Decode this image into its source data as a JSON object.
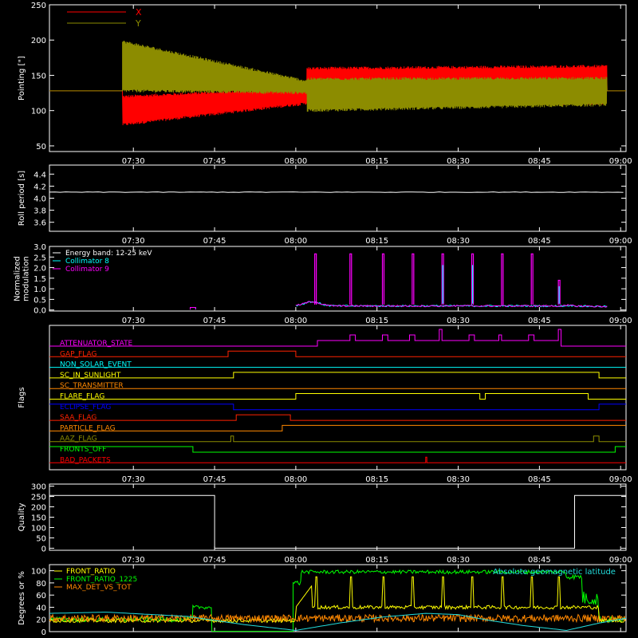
{
  "time_axis": {
    "tick_labels": [
      "07:30",
      "07:45",
      "08:00",
      "08:15",
      "08:30",
      "08:45",
      "09:00"
    ],
    "tick_minutes": [
      0,
      15,
      30,
      45,
      60,
      75,
      90
    ],
    "range_minutes": [
      -15.5,
      91
    ]
  },
  "colors": {
    "axes": "#ffffff",
    "red": "#ff0000",
    "olive": "#8c8c00",
    "cyan": "#00ffff",
    "magenta": "#ff00ff",
    "white": "#ffffff",
    "green": "#00ff00",
    "yellow": "#ffff00",
    "orange": "#ff8800",
    "blue": "#0000ff",
    "aqua": "#22dddd"
  },
  "chart_data": [
    {
      "id": "pointing",
      "type": "line",
      "ylabel": "Pointing [\"]",
      "ylim": [
        42,
        250
      ],
      "yticks": [
        50,
        100,
        150,
        200,
        250
      ],
      "legend": [
        {
          "name": "X",
          "color": "#ff0000"
        },
        {
          "name": "Y",
          "color": "#8c8c00"
        }
      ],
      "series": [
        {
          "name": "X",
          "color": "#ff0000",
          "baseline": 128,
          "envelope": {
            "t": [
              -2,
              32,
              32,
              87.5
            ],
            "low": [
              80,
              110,
              110,
              110
            ],
            "high": [
              120,
              132,
              160,
              163
            ]
          }
        },
        {
          "name": "Y",
          "color": "#8c8c00",
          "baseline": 128,
          "envelope": {
            "t": [
              -2,
              32,
              32,
              87.5
            ],
            "low": [
              128,
              125,
              100,
              108
            ],
            "high": [
              198,
              142,
              145,
              146
            ]
          }
        }
      ]
    },
    {
      "id": "roll",
      "type": "line",
      "ylabel": "Roll period [s]",
      "ylim": [
        3.45,
        4.55
      ],
      "yticks": [
        3.6,
        3.8,
        4.0,
        4.2,
        4.4
      ],
      "yticklabels": [
        "3.6",
        "3.8",
        "4.0",
        "4.2",
        "4.4"
      ],
      "series": [
        {
          "name": "",
          "color": "#ffffff",
          "value": 4.1,
          "range": [
            -15.5,
            91
          ]
        }
      ]
    },
    {
      "id": "modulation",
      "type": "line",
      "ylabel": [
        "Normalized",
        "modulation"
      ],
      "ylim": [
        -0.05,
        3.0
      ],
      "yticks": [
        0.0,
        0.5,
        1.0,
        1.5,
        2.0,
        2.5,
        3.0
      ],
      "yticklabels": [
        "0.0",
        "0.5",
        "1.0",
        "1.5",
        "2.0",
        "2.5",
        "3.0"
      ],
      "legend": [
        {
          "name": "Energy band: 12-25 keV",
          "color": "#ffffff"
        },
        {
          "name": "Collimator 8",
          "color": "#00ffff"
        },
        {
          "name": "Collimator 9",
          "color": "#ff00ff"
        }
      ],
      "active_range": [
        30,
        87.5
      ],
      "spikes": [
        {
          "t": 33.5,
          "value": 2.65
        },
        {
          "t": 40,
          "value": 2.65
        },
        {
          "t": 46,
          "value": 2.65
        },
        {
          "t": 51.5,
          "value": 2.65
        },
        {
          "t": 57,
          "value": 2.65
        },
        {
          "t": 62.5,
          "value": 2.65
        },
        {
          "t": 68,
          "value": 2.65
        },
        {
          "t": 73.5,
          "value": 2.65
        },
        {
          "t": 78.5,
          "value": 1.4
        }
      ]
    },
    {
      "id": "flags",
      "type": "line",
      "ylabel": "Flags",
      "rows": [
        {
          "name": "ATTENUATOR_STATE",
          "color": "#ff00ff",
          "steps": [
            [
              -15.5,
              0
            ],
            [
              34,
              1
            ],
            [
              40,
              2
            ],
            [
              41,
              1
            ],
            [
              46,
              2
            ],
            [
              47,
              1
            ],
            [
              51,
              2
            ],
            [
              52,
              1
            ],
            [
              56.5,
              3
            ],
            [
              57,
              1
            ],
            [
              62,
              2
            ],
            [
              63,
              1
            ],
            [
              67.5,
              2
            ],
            [
              68,
              1
            ],
            [
              73,
              2
            ],
            [
              74,
              1
            ],
            [
              78.5,
              3
            ],
            [
              79,
              0
            ],
            [
              91,
              0
            ]
          ]
        },
        {
          "name": "GAP_FLAG",
          "color": "#ff2200",
          "steps": [
            [
              -15.5,
              0
            ],
            [
              17.5,
              1
            ],
            [
              30,
              0
            ],
            [
              91,
              0
            ]
          ]
        },
        {
          "name": "NON_SOLAR_EVENT",
          "color": "#00ffff",
          "steps": [
            [
              -15.5,
              0
            ],
            [
              91,
              0
            ]
          ]
        },
        {
          "name": "SC_IN_SUNLIGHT",
          "color": "#ffff00",
          "steps": [
            [
              -15.5,
              0
            ],
            [
              18.5,
              1
            ],
            [
              86,
              0
            ],
            [
              91,
              0
            ]
          ]
        },
        {
          "name": "SC_TRANSMITTER",
          "color": "#ff8800",
          "steps": [
            [
              -15.5,
              0
            ],
            [
              91,
              0
            ]
          ]
        },
        {
          "name": "FLARE_FLAG",
          "color": "#ffff00",
          "steps": [
            [
              -15.5,
              0
            ],
            [
              30,
              1
            ],
            [
              64,
              0
            ],
            [
              65,
              1
            ],
            [
              84,
              0
            ],
            [
              91,
              0
            ]
          ]
        },
        {
          "name": "ECLIPSE_FLAG",
          "color": "#0000ff",
          "steps": [
            [
              -15.5,
              1
            ],
            [
              18.5,
              0
            ],
            [
              86,
              1
            ],
            [
              91,
              1
            ]
          ]
        },
        {
          "name": "SAA_FLAG",
          "color": "#ff2200",
          "steps": [
            [
              -15.5,
              0
            ],
            [
              19,
              1
            ],
            [
              29,
              0
            ],
            [
              91,
              0
            ]
          ]
        },
        {
          "name": "PARTICLE_FLAG",
          "color": "#ff8800",
          "steps": [
            [
              -15.5,
              0
            ],
            [
              27.5,
              1
            ],
            [
              91,
              1
            ]
          ]
        },
        {
          "name": "AAZ_FLAG",
          "color": "#8c8c00",
          "steps": [
            [
              -15.5,
              0
            ],
            [
              18,
              1
            ],
            [
              18.5,
              0
            ],
            [
              85,
              1
            ],
            [
              86,
              0
            ],
            [
              91,
              0
            ]
          ]
        },
        {
          "name": "FRONTS_OFF",
          "color": "#00ff00",
          "steps": [
            [
              -15.5,
              1
            ],
            [
              11,
              0
            ],
            [
              89,
              1
            ],
            [
              91,
              1
            ]
          ]
        },
        {
          "name": "BAD_PACKETS",
          "color": "#ff0000",
          "steps": [
            [
              -15.5,
              0
            ],
            [
              54,
              1
            ],
            [
              54.2,
              0
            ],
            [
              91,
              0
            ]
          ]
        }
      ]
    },
    {
      "id": "quality",
      "type": "line",
      "ylabel": "Quality",
      "ylim": [
        -10,
        310
      ],
      "yticks": [
        0,
        50,
        100,
        150,
        200,
        250,
        300
      ],
      "series": [
        {
          "name": "",
          "color": "#ffffff",
          "steps": [
            [
              -15.5,
              255
            ],
            [
              15,
              255
            ],
            [
              15,
              0
            ],
            [
              81.5,
              0
            ],
            [
              81.5,
              255
            ],
            [
              91,
              255
            ]
          ]
        }
      ]
    },
    {
      "id": "front",
      "type": "line",
      "ylabel": "Degrees or %",
      "ylim": [
        0,
        110
      ],
      "yticks": [
        0,
        20,
        40,
        60,
        80,
        100
      ],
      "legend": [
        {
          "name": "FRONT_RATIO",
          "color": "#ffff00"
        },
        {
          "name": "FRONT_RATIO_1225",
          "color": "#00ff00"
        },
        {
          "name": "MAX_DET_VS_TOT",
          "color": "#ff8800"
        }
      ],
      "annotation": {
        "text": "Absolute geomagnetic latitude",
        "color": "#22dddd"
      },
      "series": [
        {
          "name": "FRONT_RATIO_1225",
          "color": "#00ff00",
          "segments": [
            {
              "t": [
                -15.5,
                11
              ],
              "base": 20,
              "noise": 4
            },
            {
              "t": [
                11,
                14.5
              ],
              "base": 40,
              "noise": 3
            },
            {
              "t": [
                14.5,
                29.5
              ],
              "base": 0,
              "noise": 0
            },
            {
              "t": [
                29.5,
                31
              ],
              "base": 80,
              "noise": 4
            },
            {
              "t": [
                31,
                80
              ],
              "base": 98,
              "noise": 3
            },
            {
              "t": [
                80,
                83
              ],
              "base": 90,
              "noise": 4
            },
            {
              "t": [
                83,
                86
              ],
              "base": 55,
              "noise": 12
            },
            {
              "t": [
                86,
                91
              ],
              "base": 20,
              "noise": 5
            }
          ]
        },
        {
          "name": "FRONT_RATIO",
          "color": "#ffff00",
          "pulses": [
            33.5,
            40,
            46,
            51.5,
            57,
            62.5,
            68,
            73.5,
            78.5
          ],
          "level_low": 40,
          "level_high": 90,
          "active_range": [
            30,
            86
          ]
        },
        {
          "name": "MAX_DET_VS_TOT",
          "color": "#ff8800",
          "base": 22,
          "noise": 6
        },
        {
          "name": "geomagnetic",
          "color": "#22dddd",
          "points": [
            [
              -15.5,
              30
            ],
            [
              -5,
              32
            ],
            [
              10,
              25
            ],
            [
              20,
              12
            ],
            [
              30,
              2
            ],
            [
              38,
              14
            ],
            [
              46,
              24
            ],
            [
              54,
              30
            ],
            [
              60,
              28
            ],
            [
              66,
              18
            ],
            [
              72,
              10
            ],
            [
              80,
              2
            ],
            [
              86,
              14
            ],
            [
              91,
              22
            ]
          ]
        }
      ]
    }
  ]
}
